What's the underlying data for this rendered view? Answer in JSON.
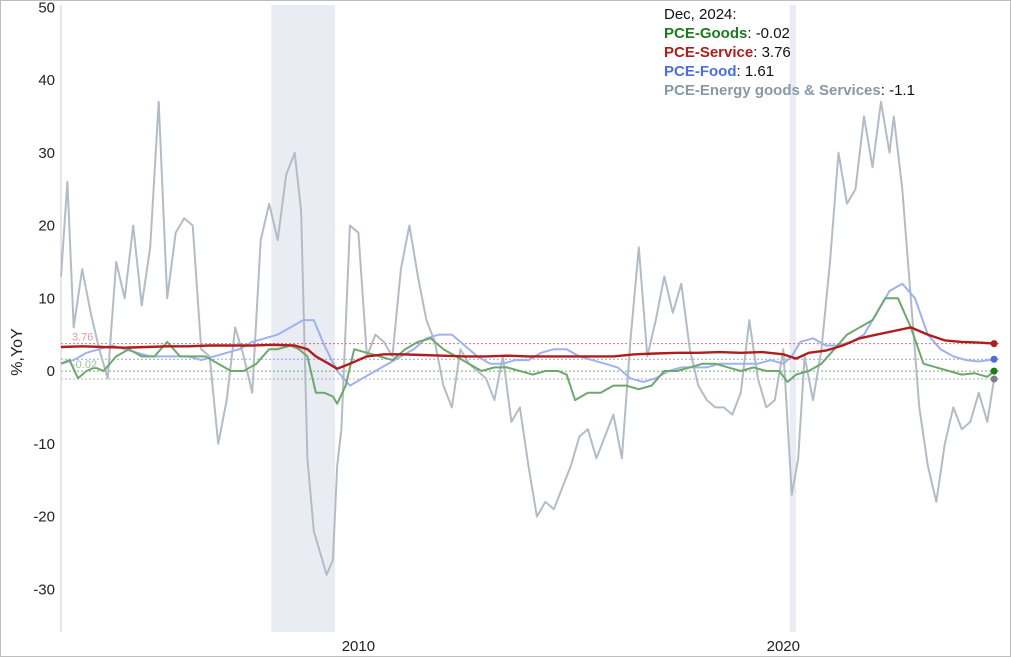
{
  "chart_data": {
    "type": "line",
    "ylabel": "%,YoY",
    "ylim": [
      -35,
      50
    ],
    "yticks": [
      "50",
      "40",
      "30",
      "20",
      "10",
      "0",
      "-10",
      "-20",
      "-30"
    ],
    "ytick_values": [
      50,
      40,
      30,
      20,
      10,
      0,
      -10,
      -20,
      -30
    ],
    "xlim": [
      2003.0,
      2025.1
    ],
    "xticks": [
      "2010",
      "2020"
    ],
    "xtick_values": [
      2010,
      2020
    ],
    "recessions": [
      [
        2007.95,
        2009.45
      ],
      [
        2020.15,
        2020.3
      ]
    ],
    "legend": {
      "date": "Dec, 2024:",
      "items": [
        {
          "name": "PCE-Goods",
          "value": "-0.02",
          "color": "#1e7a1e"
        },
        {
          "name": "PCE-Service",
          "value": "3.76",
          "color": "#b01d1d"
        },
        {
          "name": "PCE-Food",
          "value": "1.61",
          "color": "#4a6fd6"
        },
        {
          "name": "PCE-Energy goods & Services",
          "value": "-1.1",
          "color": "#8a98a6"
        }
      ]
    },
    "end_labels": [
      "3.76",
      "-0.02"
    ],
    "series": [
      {
        "name": "PCE-Energy goods & Services",
        "color": "#b3bcc6",
        "end_color": "#7a7f88",
        "x": [
          2003.0,
          2003.15,
          2003.3,
          2003.5,
          2003.7,
          2003.9,
          2004.1,
          2004.3,
          2004.5,
          2004.7,
          2004.9,
          2005.1,
          2005.3,
          2005.5,
          2005.7,
          2005.9,
          2006.1,
          2006.3,
          2006.5,
          2006.7,
          2006.9,
          2007.1,
          2007.3,
          2007.5,
          2007.7,
          2007.9,
          2008.1,
          2008.3,
          2008.5,
          2008.65,
          2008.8,
          2008.95,
          2009.1,
          2009.25,
          2009.4,
          2009.5,
          2009.6,
          2009.8,
          2010.0,
          2010.2,
          2010.4,
          2010.6,
          2010.8,
          2011.0,
          2011.2,
          2011.4,
          2011.6,
          2011.8,
          2012.0,
          2012.2,
          2012.4,
          2012.6,
          2012.8,
          2013.0,
          2013.2,
          2013.4,
          2013.6,
          2013.8,
          2014.0,
          2014.2,
          2014.4,
          2014.6,
          2014.8,
          2015.0,
          2015.2,
          2015.4,
          2015.6,
          2015.8,
          2016.0,
          2016.2,
          2016.4,
          2016.6,
          2016.8,
          2017.0,
          2017.2,
          2017.4,
          2017.6,
          2017.8,
          2018.0,
          2018.2,
          2018.4,
          2018.6,
          2018.8,
          2019.0,
          2019.2,
          2019.4,
          2019.6,
          2019.8,
          2020.0,
          2020.2,
          2020.35,
          2020.5,
          2020.7,
          2020.9,
          2021.1,
          2021.3,
          2021.5,
          2021.7,
          2021.9,
          2022.1,
          2022.3,
          2022.5,
          2022.6,
          2022.8,
          2023.0,
          2023.2,
          2023.4,
          2023.6,
          2023.8,
          2024.0,
          2024.2,
          2024.4,
          2024.6,
          2024.8,
          2024.96
        ],
        "values": [
          13,
          26,
          6,
          14,
          8,
          3,
          -1,
          15,
          10,
          20,
          9,
          17,
          37,
          10,
          19,
          21,
          20,
          3,
          2,
          -10,
          -4,
          6,
          2,
          -3,
          18,
          23,
          18,
          27,
          30,
          22,
          -12,
          -22,
          -25,
          -28,
          -26,
          -13,
          -8,
          20,
          19,
          2,
          5,
          4,
          2,
          14,
          20,
          13,
          7,
          4,
          -2,
          -5,
          3,
          1,
          0,
          -1,
          -4,
          2,
          -7,
          -5,
          -13,
          -20,
          -18,
          -19,
          -16,
          -13,
          -9,
          -8,
          -12,
          -9,
          -6,
          -12,
          4,
          17,
          2,
          7,
          13,
          8,
          12,
          3,
          -2,
          -4,
          -5,
          -5,
          -6,
          -3,
          7,
          -1,
          -5,
          -4,
          3,
          -17,
          -12,
          2,
          -4,
          3,
          15,
          30,
          23,
          25,
          35,
          28,
          37,
          30,
          35,
          25,
          10,
          -5,
          -13,
          -18,
          -10,
          -5,
          -8,
          -7,
          -3,
          -7,
          -1.1
        ]
      },
      {
        "name": "PCE-Food",
        "color": "#9fb2ef",
        "end_color": "#4a6fd6",
        "x": [
          2003.0,
          2003.3,
          2003.6,
          2003.9,
          2004.2,
          2004.5,
          2004.8,
          2005.1,
          2005.4,
          2005.7,
          2006.0,
          2006.3,
          2006.6,
          2006.9,
          2007.2,
          2007.5,
          2007.8,
          2008.1,
          2008.4,
          2008.7,
          2008.95,
          2009.2,
          2009.5,
          2009.8,
          2010.1,
          2010.4,
          2010.7,
          2011.0,
          2011.3,
          2011.6,
          2011.9,
          2012.2,
          2012.5,
          2012.8,
          2013.1,
          2013.4,
          2013.7,
          2014.0,
          2014.3,
          2014.6,
          2014.9,
          2015.2,
          2015.5,
          2015.8,
          2016.1,
          2016.4,
          2016.7,
          2017.0,
          2017.3,
          2017.6,
          2017.9,
          2018.2,
          2018.5,
          2018.8,
          2019.1,
          2019.4,
          2019.7,
          2020.0,
          2020.2,
          2020.4,
          2020.7,
          2021.0,
          2021.3,
          2021.6,
          2021.9,
          2022.2,
          2022.5,
          2022.8,
          2023.1,
          2023.4,
          2023.7,
          2024.0,
          2024.3,
          2024.6,
          2024.96
        ],
        "values": [
          1,
          1.5,
          2.5,
          3,
          3.5,
          3,
          2.5,
          2,
          2,
          2,
          2,
          1.5,
          2,
          2.5,
          3,
          4,
          4.5,
          5,
          6,
          7,
          7,
          3.5,
          0,
          -2,
          -1,
          0,
          1,
          2,
          3,
          4.5,
          5,
          5,
          3.5,
          2,
          1,
          1,
          1.5,
          1.5,
          2.5,
          3,
          3,
          2,
          1.5,
          1,
          0.5,
          -1,
          -1.5,
          -1,
          0,
          0.5,
          0.5,
          0.5,
          1,
          1,
          1,
          1,
          1.5,
          1,
          2,
          4,
          4.5,
          3.5,
          3.5,
          4,
          5,
          8,
          11,
          12,
          10,
          5,
          3,
          2,
          1.5,
          1.3,
          1.61
        ]
      },
      {
        "name": "PCE-Goods",
        "color": "#6ea86e",
        "end_color": "#1e7a1e",
        "x": [
          2003.0,
          2003.2,
          2003.4,
          2003.6,
          2003.8,
          2004.0,
          2004.3,
          2004.6,
          2004.9,
          2005.2,
          2005.5,
          2005.8,
          2006.1,
          2006.4,
          2006.7,
          2007.0,
          2007.3,
          2007.6,
          2007.9,
          2008.1,
          2008.4,
          2008.6,
          2008.8,
          2009.0,
          2009.2,
          2009.4,
          2009.5,
          2009.7,
          2009.9,
          2010.2,
          2010.5,
          2010.8,
          2011.1,
          2011.4,
          2011.7,
          2012.0,
          2012.3,
          2012.6,
          2012.9,
          2013.2,
          2013.5,
          2013.8,
          2014.1,
          2014.4,
          2014.7,
          2014.9,
          2015.1,
          2015.4,
          2015.7,
          2016.0,
          2016.3,
          2016.6,
          2016.9,
          2017.2,
          2017.5,
          2017.8,
          2018.1,
          2018.4,
          2018.7,
          2019.0,
          2019.3,
          2019.6,
          2019.9,
          2020.1,
          2020.3,
          2020.6,
          2020.9,
          2021.2,
          2021.5,
          2021.8,
          2022.1,
          2022.4,
          2022.7,
          2023.0,
          2023.3,
          2023.6,
          2023.9,
          2024.2,
          2024.5,
          2024.8,
          2024.96
        ],
        "values": [
          1,
          1.5,
          -1,
          0,
          0.5,
          0,
          2,
          3,
          2,
          2,
          4,
          2,
          2,
          2,
          1,
          0,
          0,
          1,
          3,
          3,
          3.5,
          3,
          2,
          -3,
          -3,
          -3.5,
          -4.5,
          -2,
          3,
          2.5,
          2,
          1.5,
          3,
          4,
          4.5,
          3,
          2,
          1,
          0,
          0.5,
          0.5,
          0,
          -0.5,
          0,
          0,
          -0.5,
          -4,
          -3,
          -3,
          -2,
          -2,
          -2.5,
          -2,
          0,
          0,
          0.5,
          1,
          1,
          0.5,
          0,
          0.5,
          0,
          0,
          -1.5,
          -0.5,
          0,
          1,
          3,
          5,
          6,
          7,
          10,
          10,
          6,
          1,
          0.5,
          0,
          -0.5,
          -0.3,
          -0.8,
          -0.02
        ]
      },
      {
        "name": "PCE-Service",
        "color": "#b01d1d",
        "end_color": "#b01d1d",
        "x": [
          2003.0,
          2003.5,
          2004.0,
          2004.5,
          2005.0,
          2005.5,
          2006.0,
          2006.5,
          2007.0,
          2007.5,
          2008.0,
          2008.5,
          2008.8,
          2009.0,
          2009.3,
          2009.5,
          2009.8,
          2010.2,
          2010.6,
          2011.0,
          2011.5,
          2012.0,
          2012.5,
          2013.0,
          2013.5,
          2014.0,
          2014.5,
          2015.0,
          2015.5,
          2016.0,
          2016.5,
          2017.0,
          2017.5,
          2018.0,
          2018.5,
          2019.0,
          2019.5,
          2020.0,
          2020.3,
          2020.6,
          2021.0,
          2021.4,
          2021.8,
          2022.2,
          2022.6,
          2023.0,
          2023.4,
          2023.8,
          2024.2,
          2024.6,
          2024.96
        ],
        "values": [
          3.3,
          3.4,
          3.3,
          3.2,
          3.3,
          3.4,
          3.4,
          3.5,
          3.5,
          3.5,
          3.6,
          3.5,
          3,
          2,
          1,
          0.3,
          1,
          2,
          2.3,
          2.3,
          2.2,
          2.1,
          2,
          2,
          2.1,
          2,
          2,
          2,
          2,
          2,
          2.3,
          2.4,
          2.5,
          2.5,
          2.6,
          2.5,
          2.6,
          2.3,
          1.7,
          2.5,
          2.8,
          3.5,
          4.5,
          5,
          5.5,
          6,
          5,
          4.2,
          4,
          3.9,
          3.76
        ]
      }
    ]
  }
}
